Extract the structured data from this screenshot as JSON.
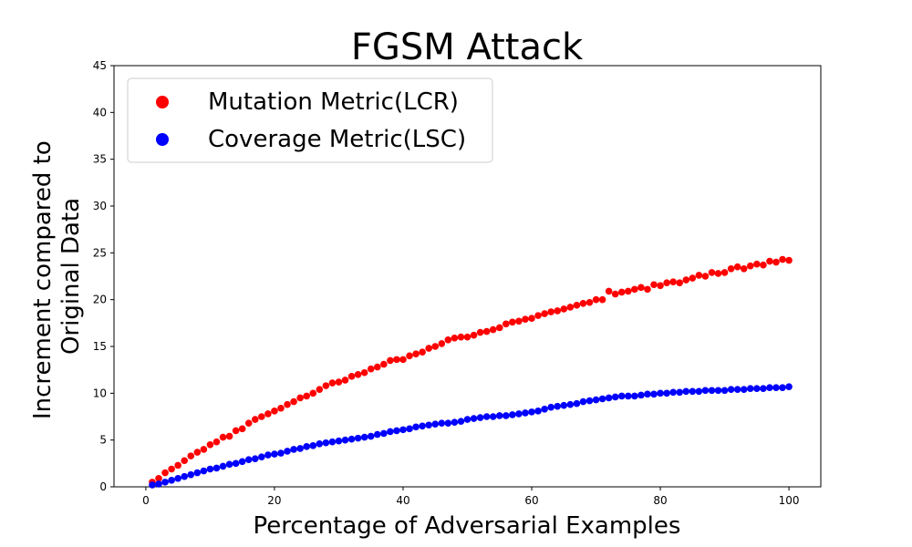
{
  "chart_data": {
    "type": "scatter",
    "title": "FGSM Attack",
    "xlabel": "Percentage of Adversarial Examples",
    "ylabel_lines": [
      "Increment compared to",
      "Original Data"
    ],
    "xlim": [
      -4.95,
      104.95
    ],
    "ylim": [
      0,
      45
    ],
    "xticks": [
      0,
      20,
      40,
      60,
      80,
      100
    ],
    "yticks": [
      0,
      5,
      10,
      15,
      20,
      25,
      30,
      35,
      40,
      45
    ],
    "grid": false,
    "legend_position": "upper-left",
    "series": [
      {
        "name": "Mutation Metric(LCR)",
        "color": "#ff0000",
        "x": [
          1,
          2,
          3,
          4,
          5,
          6,
          7,
          8,
          9,
          10,
          11,
          12,
          13,
          14,
          15,
          16,
          17,
          18,
          19,
          20,
          21,
          22,
          23,
          24,
          25,
          26,
          27,
          28,
          29,
          30,
          31,
          32,
          33,
          34,
          35,
          36,
          37,
          38,
          39,
          40,
          41,
          42,
          43,
          44,
          45,
          46,
          47,
          48,
          49,
          50,
          51,
          52,
          53,
          54,
          55,
          56,
          57,
          58,
          59,
          60,
          61,
          62,
          63,
          64,
          65,
          66,
          67,
          68,
          69,
          70,
          71,
          72,
          73,
          74,
          75,
          76,
          77,
          78,
          79,
          80,
          81,
          82,
          83,
          84,
          85,
          86,
          87,
          88,
          89,
          90,
          91,
          92,
          93,
          94,
          95,
          96,
          97,
          98,
          99,
          100
        ],
        "y": [
          0.5,
          0.9,
          1.5,
          1.9,
          2.3,
          2.8,
          3.3,
          3.7,
          4.0,
          4.5,
          4.8,
          5.3,
          5.4,
          6.0,
          6.2,
          6.8,
          7.2,
          7.5,
          7.8,
          8.1,
          8.4,
          8.8,
          9.1,
          9.5,
          9.7,
          10.0,
          10.4,
          10.8,
          11.1,
          11.2,
          11.4,
          11.8,
          12.0,
          12.2,
          12.6,
          12.8,
          13.1,
          13.5,
          13.6,
          13.6,
          14.0,
          14.2,
          14.4,
          14.8,
          15.0,
          15.3,
          15.7,
          15.9,
          16.0,
          16.0,
          16.2,
          16.5,
          16.6,
          16.8,
          17.0,
          17.4,
          17.6,
          17.7,
          17.9,
          18.0,
          18.3,
          18.5,
          18.7,
          18.8,
          19.0,
          19.2,
          19.4,
          19.6,
          19.7,
          20.0,
          20.0,
          20.9,
          20.6,
          20.8,
          20.9,
          21.1,
          21.3,
          21.1,
          21.6,
          21.5,
          21.8,
          21.9,
          21.8,
          22.1,
          22.3,
          22.6,
          22.5,
          22.9,
          22.8,
          22.9,
          23.3,
          23.5,
          23.3,
          23.6,
          23.8,
          23.7,
          24.1,
          24.0,
          24.3,
          24.2
        ]
      },
      {
        "name": "Coverage Metric(LSC)",
        "color": "#0000ff",
        "x": [
          1,
          2,
          3,
          4,
          5,
          6,
          7,
          8,
          9,
          10,
          11,
          12,
          13,
          14,
          15,
          16,
          17,
          18,
          19,
          20,
          21,
          22,
          23,
          24,
          25,
          26,
          27,
          28,
          29,
          30,
          31,
          32,
          33,
          34,
          35,
          36,
          37,
          38,
          39,
          40,
          41,
          42,
          43,
          44,
          45,
          46,
          47,
          48,
          49,
          50,
          51,
          52,
          53,
          54,
          55,
          56,
          57,
          58,
          59,
          60,
          61,
          62,
          63,
          64,
          65,
          66,
          67,
          68,
          69,
          70,
          71,
          72,
          73,
          74,
          75,
          76,
          77,
          78,
          79,
          80,
          81,
          82,
          83,
          84,
          85,
          86,
          87,
          88,
          89,
          90,
          91,
          92,
          93,
          94,
          95,
          96,
          97,
          98,
          99,
          100
        ],
        "y": [
          0.2,
          0.3,
          0.5,
          0.7,
          0.9,
          1.1,
          1.3,
          1.5,
          1.7,
          1.9,
          2.0,
          2.2,
          2.4,
          2.5,
          2.7,
          2.9,
          3.0,
          3.2,
          3.4,
          3.5,
          3.6,
          3.8,
          4.0,
          4.1,
          4.3,
          4.4,
          4.6,
          4.7,
          4.8,
          4.9,
          5.0,
          5.1,
          5.2,
          5.3,
          5.4,
          5.6,
          5.7,
          5.9,
          6.0,
          6.1,
          6.2,
          6.4,
          6.5,
          6.6,
          6.7,
          6.8,
          6.8,
          6.9,
          7.0,
          7.2,
          7.3,
          7.4,
          7.5,
          7.5,
          7.6,
          7.6,
          7.7,
          7.8,
          7.9,
          8.0,
          8.1,
          8.3,
          8.5,
          8.6,
          8.7,
          8.8,
          8.9,
          9.1,
          9.2,
          9.3,
          9.4,
          9.5,
          9.6,
          9.7,
          9.7,
          9.7,
          9.8,
          9.9,
          9.9,
          10.0,
          10.0,
          10.1,
          10.1,
          10.2,
          10.2,
          10.2,
          10.3,
          10.3,
          10.3,
          10.3,
          10.4,
          10.4,
          10.4,
          10.5,
          10.5,
          10.5,
          10.6,
          10.6,
          10.6,
          10.7
        ]
      }
    ]
  }
}
